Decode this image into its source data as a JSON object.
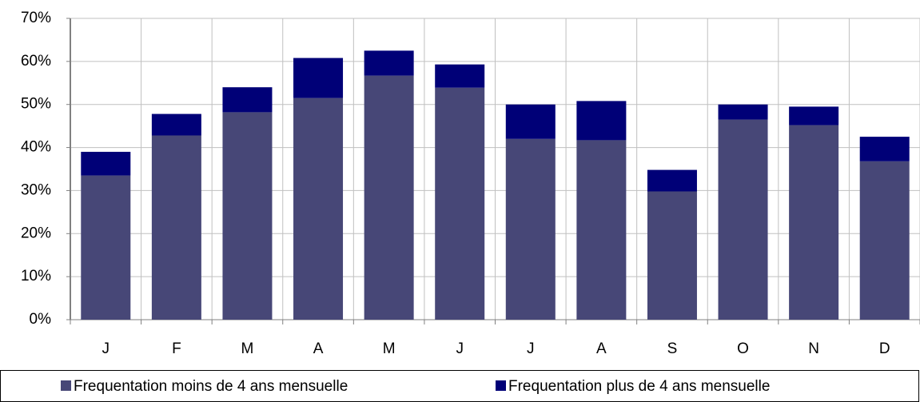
{
  "chart_data": {
    "type": "stacked_bar",
    "categories": [
      "J",
      "F",
      "M",
      "A",
      "M",
      "J",
      "J",
      "A",
      "S",
      "O",
      "N",
      "D"
    ],
    "series": [
      {
        "name": "Frequentation moins de 4 ans mensuelle",
        "color": "#474777",
        "values": [
          33.5,
          42.8,
          48.2,
          51.5,
          56.7,
          53.9,
          42,
          41.7,
          29.8,
          46.5,
          45.2,
          36.8
        ]
      },
      {
        "name": "Frequentation plus de 4 ans mensuelle",
        "color": "#000077",
        "values": [
          5.5,
          5,
          5.8,
          9.3,
          5.8,
          5.4,
          8,
          9.1,
          5,
          3.5,
          4.3,
          5.7
        ]
      }
    ],
    "ylim": [
      0,
      70
    ],
    "yticks": [
      {
        "value": 0,
        "label": "0%"
      },
      {
        "value": 10,
        "label": "10%"
      },
      {
        "value": 20,
        "label": "20%"
      },
      {
        "value": 30,
        "label": "30%"
      },
      {
        "value": 40,
        "label": "40%"
      },
      {
        "value": 50,
        "label": "50%"
      },
      {
        "value": 60,
        "label": "60%"
      },
      {
        "value": 70,
        "label": "70%"
      }
    ],
    "grid": true,
    "legend": "bottom"
  }
}
